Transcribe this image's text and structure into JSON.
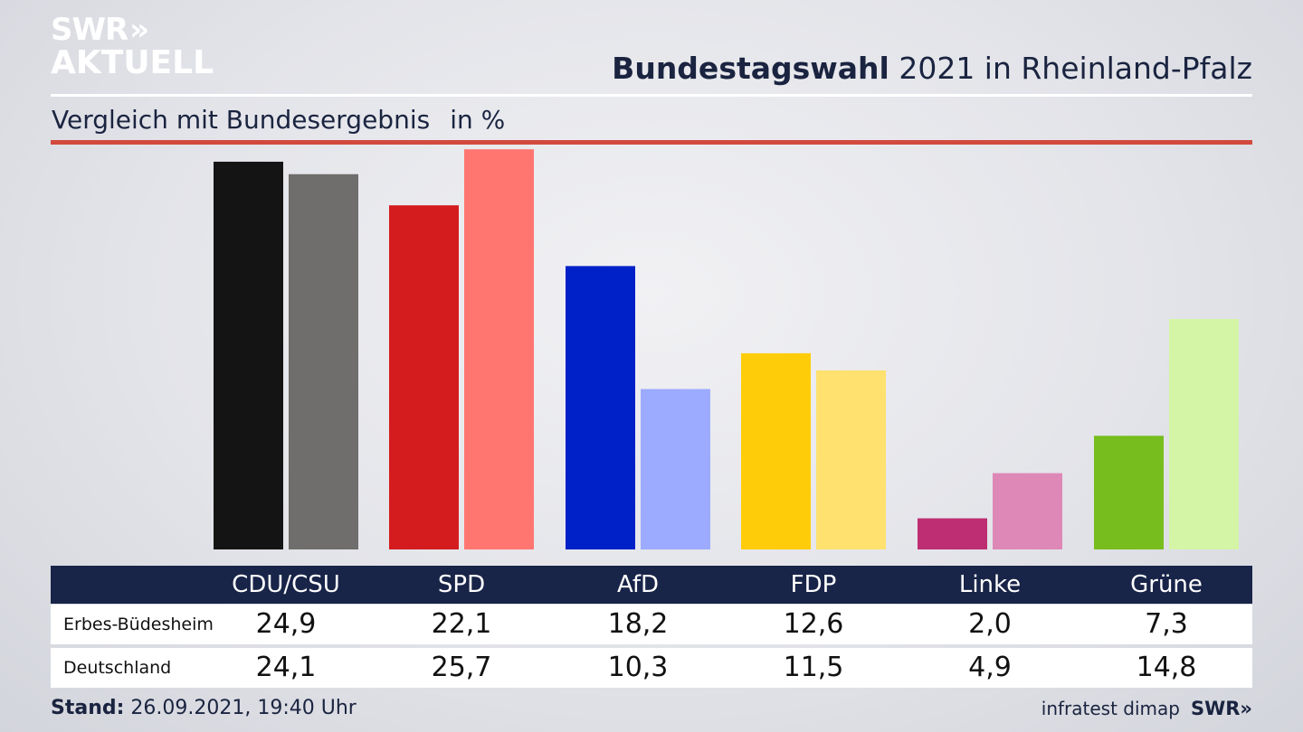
{
  "logo": {
    "line1": "SWR",
    "chevrons": "»",
    "line2": "AKTUELL"
  },
  "header": {
    "title_bold": "Bundestagswahl",
    "title_rest": "2021 in Rheinland-Pfalz",
    "subtitle": "Vergleich mit Bundesergebnis",
    "unit": "in %"
  },
  "chart_data": {
    "type": "bar",
    "categories": [
      "CDU/CSU",
      "SPD",
      "AfD",
      "FDP",
      "Linke",
      "Grüne"
    ],
    "series": [
      {
        "name": "Erbes-Büdesheim",
        "values": [
          24.9,
          22.1,
          18.2,
          12.6,
          2.0,
          7.3
        ],
        "colors": [
          "#141414",
          "#d41c1e",
          "#0021c8",
          "#ffcc0a",
          "#be2e72",
          "#78bd1e"
        ]
      },
      {
        "name": "Deutschland",
        "values": [
          24.1,
          25.7,
          10.3,
          11.5,
          4.9,
          14.8
        ],
        "colors": [
          "#706e6c",
          "#ff7670",
          "#9caaff",
          "#fee16e",
          "#de88b8",
          "#d4f5a6"
        ]
      }
    ],
    "value_labels": [
      [
        "24,9",
        "22,1",
        "18,2",
        "12,6",
        "2,0",
        "7,3"
      ],
      [
        "24,1",
        "25,7",
        "10,3",
        "11,5",
        "4,9",
        "14,8"
      ]
    ],
    "ylim": [
      0,
      26
    ],
    "grid": false,
    "legend": "table-below"
  },
  "footer": {
    "stand_label": "Stand:",
    "stand_value": "26.09.2021, 19:40 Uhr",
    "source": "infratest dimap",
    "brand": "SWR»"
  }
}
